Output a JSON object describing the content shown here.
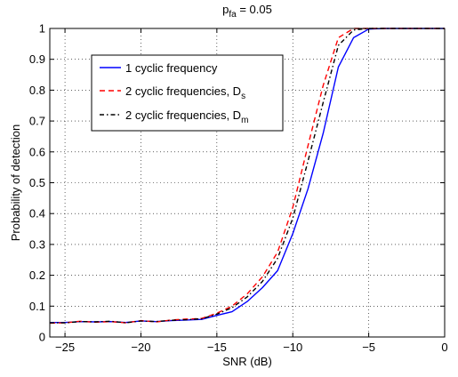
{
  "chart_data": {
    "type": "line",
    "title": "p",
    "title_subscript": "fa",
    "title_suffix": " = 0.05",
    "xlabel": "SNR (dB)",
    "ylabel": "Probability of detection",
    "xlim": [
      -26,
      0
    ],
    "ylim": [
      0,
      1
    ],
    "xticks": [
      -25,
      -20,
      -15,
      -10,
      -5,
      0
    ],
    "xtick_labels": [
      "−25",
      "−20",
      "−15",
      "−10",
      "−5",
      "0"
    ],
    "yticks": [
      0,
      0.1,
      0.2,
      0.3,
      0.4,
      0.5,
      0.6,
      0.7,
      0.8,
      0.9,
      1
    ],
    "ytick_labels": [
      "0",
      "0.1",
      "0.2",
      "0.3",
      "0.4",
      "0.5",
      "0.6",
      "0.7",
      "0.8",
      "0.9",
      "1"
    ],
    "grid": true,
    "legend_position": "upper-left",
    "series": [
      {
        "name": "1 cyclic frequency",
        "name_subscript": "",
        "color": "#0000ff",
        "dash": "solid",
        "x": [
          -26,
          -25,
          -24,
          -23,
          -22,
          -21,
          -20,
          -19,
          -18,
          -17,
          -16,
          -15,
          -14,
          -13,
          -12,
          -11,
          -10,
          -9,
          -8,
          -7,
          -6,
          -5,
          -4,
          -3,
          -2,
          -1,
          0
        ],
        "y": [
          0.047,
          0.047,
          0.05,
          0.049,
          0.05,
          0.047,
          0.052,
          0.05,
          0.053,
          0.055,
          0.057,
          0.07,
          0.082,
          0.115,
          0.16,
          0.215,
          0.335,
          0.48,
          0.66,
          0.875,
          0.97,
          0.998,
          1,
          1,
          1,
          1,
          1
        ]
      },
      {
        "name": "2 cyclic frequencies, D",
        "name_subscript": "s",
        "color": "#ff0000",
        "dash": "6,4",
        "x": [
          -26,
          -25,
          -24,
          -23,
          -22,
          -21,
          -20,
          -19,
          -18,
          -17,
          -16,
          -15,
          -14,
          -13,
          -12,
          -11,
          -10,
          -9,
          -8,
          -7,
          -6,
          -5,
          -4,
          -3,
          -2,
          -1,
          0
        ],
        "y": [
          0.045,
          0.046,
          0.051,
          0.048,
          0.05,
          0.046,
          0.053,
          0.049,
          0.055,
          0.058,
          0.06,
          0.077,
          0.1,
          0.14,
          0.195,
          0.275,
          0.42,
          0.62,
          0.815,
          0.97,
          1,
          1,
          1,
          1,
          1,
          1,
          1
        ]
      },
      {
        "name": "2 cyclic frequencies, D",
        "name_subscript": "m",
        "color": "#000000",
        "dash": "5,3,1.5,3",
        "x": [
          -26,
          -25,
          -24,
          -23,
          -22,
          -21,
          -20,
          -19,
          -18,
          -17,
          -16,
          -15,
          -14,
          -13,
          -12,
          -11,
          -10,
          -9,
          -8,
          -7,
          -6,
          -5,
          -4,
          -3,
          -2,
          -1,
          0
        ],
        "y": [
          0.046,
          0.046,
          0.05,
          0.049,
          0.051,
          0.046,
          0.052,
          0.05,
          0.054,
          0.056,
          0.059,
          0.074,
          0.095,
          0.13,
          0.18,
          0.255,
          0.385,
          0.57,
          0.76,
          0.945,
          0.995,
          1,
          1,
          1,
          1,
          1,
          1
        ]
      }
    ]
  }
}
